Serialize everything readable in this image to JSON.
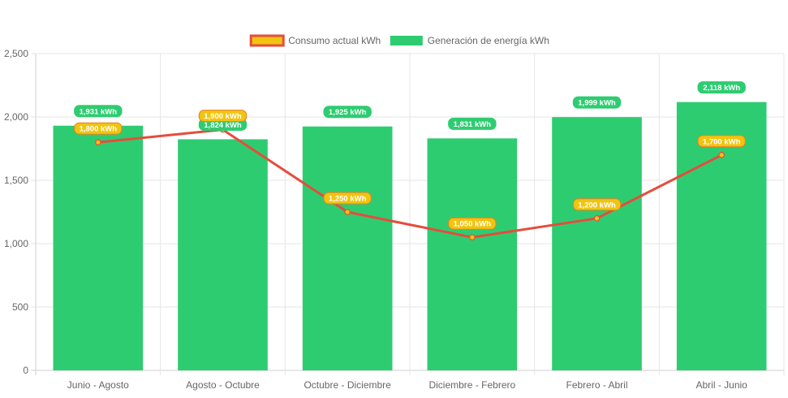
{
  "chart_data": {
    "type": "bar",
    "title": "",
    "xlabel": "",
    "ylabel": "",
    "categories": [
      "Junio - Agosto",
      "Agosto - Octubre",
      "Octubre - Diciembre",
      "Diciembre - Febrero",
      "Febrero - Abril",
      "Abril - Junio"
    ],
    "ylim": [
      0,
      2500
    ],
    "y_ticks": [
      0,
      500,
      1000,
      1500,
      2000,
      2500
    ],
    "y_tick_labels": [
      "0",
      "500",
      "1,000",
      "1,500",
      "2,000",
      "2,500"
    ],
    "grid": true,
    "legend_position": "top-center",
    "series": [
      {
        "name": "Consumo actual kWh",
        "type": "line",
        "values": [
          1800,
          1900,
          1250,
          1050,
          1200,
          1700
        ],
        "labels": [
          "1,800 kWh",
          "1,900 kWh",
          "1,250 kWh",
          "1,050 kWh",
          "1,200 kWh",
          "1,700 kWh"
        ],
        "color": "#E74C3C",
        "fill_color": "#F1C40F"
      },
      {
        "name": "Generación de energía kWh",
        "type": "bar",
        "values": [
          1931,
          1824,
          1925,
          1831,
          1999,
          2118
        ],
        "labels": [
          "1,931 kWh",
          "1,824 kWh",
          "1,925 kWh",
          "1,831 kWh",
          "1,999 kWh",
          "2,118 kWh"
        ],
        "color": "#2ECC71"
      }
    ]
  }
}
